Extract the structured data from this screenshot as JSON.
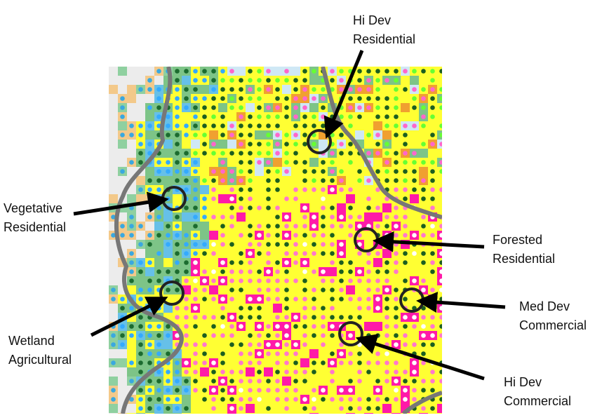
{
  "annotations": [
    {
      "lines": [
        "Hi Dev",
        "Residential"
      ]
    },
    {
      "lines": [
        "Vegetative",
        "Residential"
      ]
    },
    {
      "lines": [
        "Forested",
        "Residential"
      ]
    },
    {
      "lines": [
        "Med Dev",
        "Commercial"
      ]
    },
    {
      "lines": [
        "Wetland",
        "Agricultural"
      ]
    },
    {
      "lines": [
        "Hi Dev",
        "Commercial"
      ]
    }
  ]
}
